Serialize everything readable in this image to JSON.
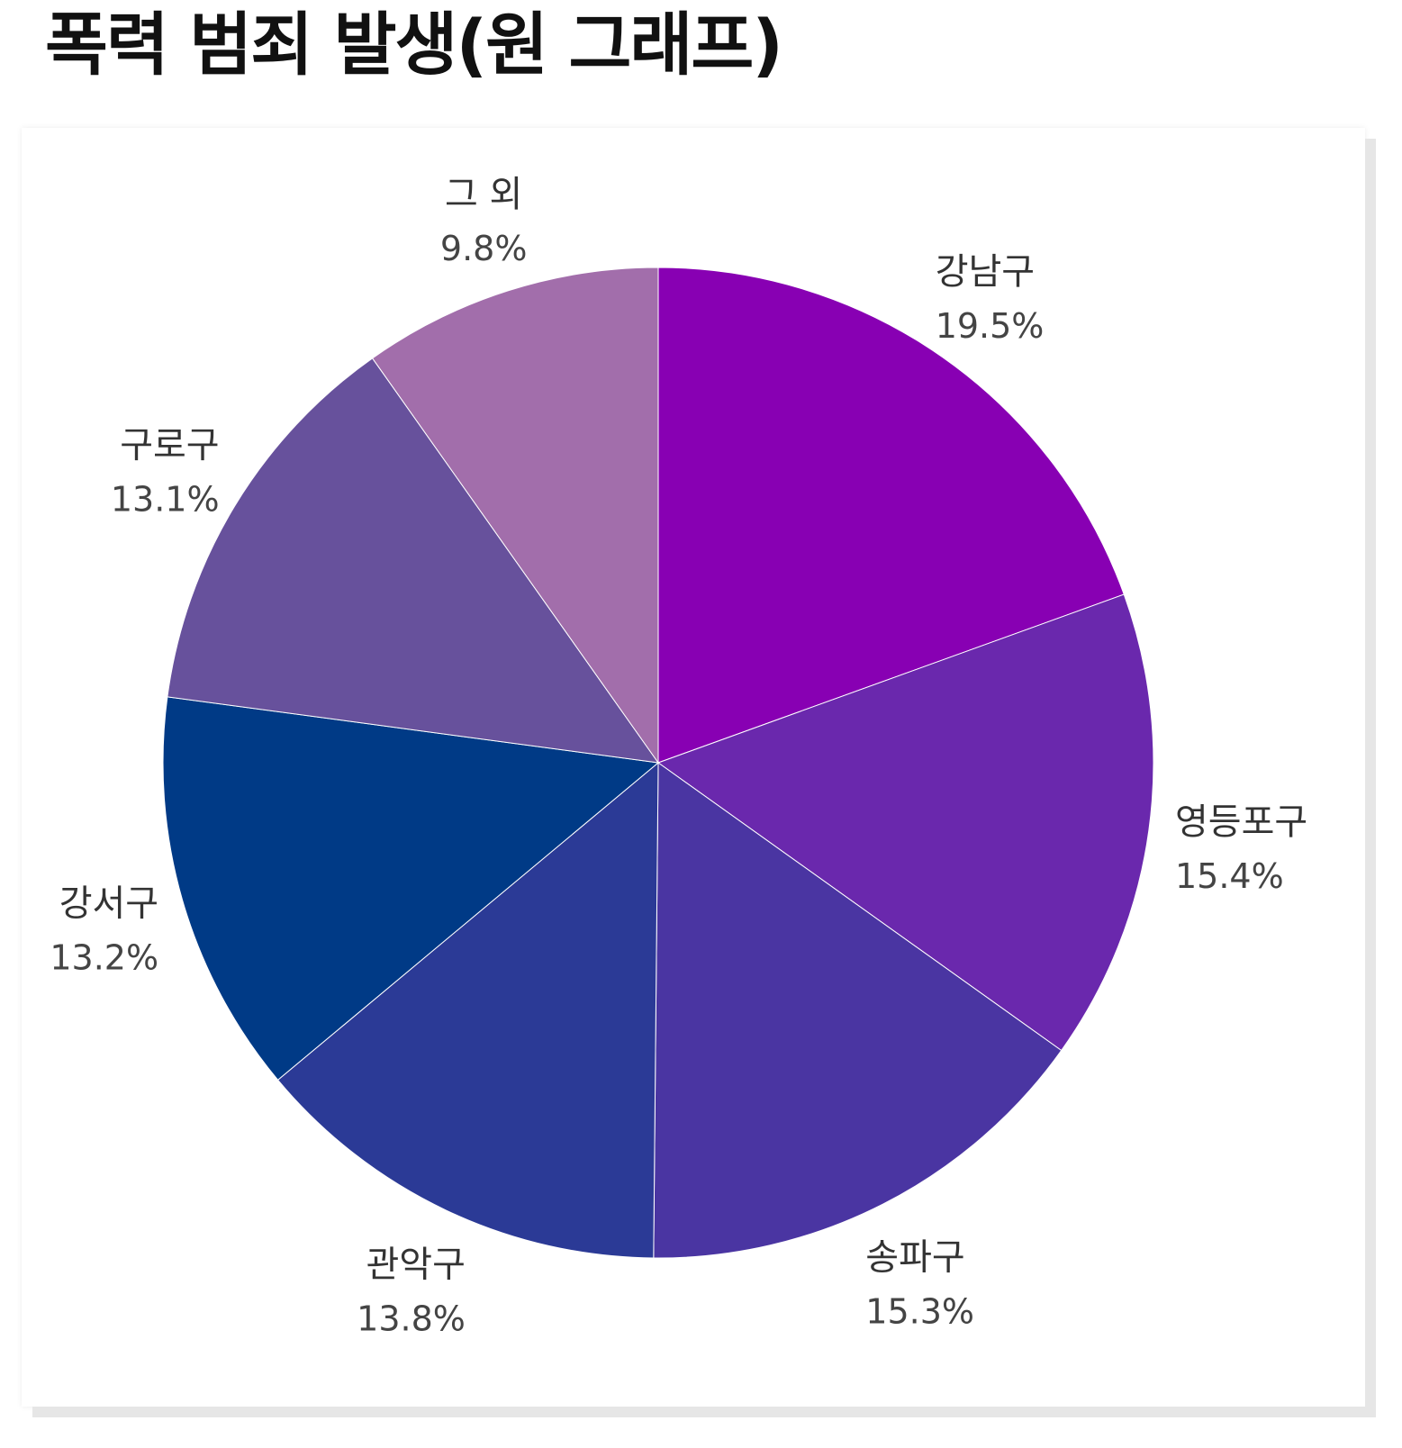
{
  "page": {
    "title": "폭력 범죄 발생(원 그래프)"
  },
  "chart_data": {
    "type": "pie",
    "title": "폭력 범죄 발생(원 그래프)",
    "start_angle_deg": 0,
    "direction": "clockwise",
    "slices": [
      {
        "label": "강남구",
        "value": 19.5,
        "percent_label": "19.5%",
        "color": "#8800b3"
      },
      {
        "label": "영등포구",
        "value": 15.4,
        "percent_label": "15.4%",
        "color": "#6a28ad"
      },
      {
        "label": "송파구",
        "value": 15.3,
        "percent_label": "15.3%",
        "color": "#4a35a2"
      },
      {
        "label": "관악구",
        "value": 13.8,
        "percent_label": "13.8%",
        "color": "#2b3a96"
      },
      {
        "label": "강서구",
        "value": 13.2,
        "percent_label": "13.2%",
        "color": "#003a86"
      },
      {
        "label": "구로구",
        "value": 13.1,
        "percent_label": "13.1%",
        "color": "#67519c"
      },
      {
        "label": "그 외",
        "value": 9.8,
        "percent_label": "9.8%",
        "color": "#a26eab"
      }
    ]
  }
}
